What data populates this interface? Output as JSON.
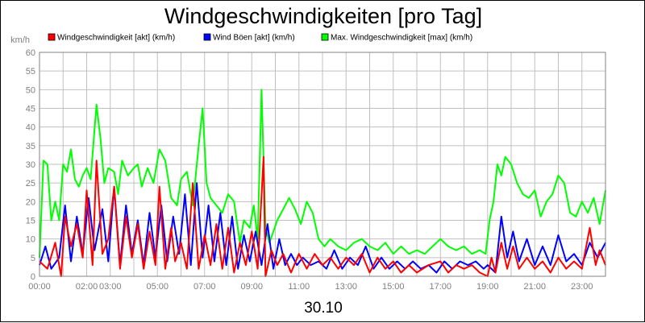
{
  "chart_data": {
    "type": "line",
    "title": "Windgeschwindigkeiten [pro Tag]",
    "date_label": "30.10",
    "y_unit": "km/h",
    "ylim": [
      0,
      60
    ],
    "y_ticks": [
      "0",
      "5",
      "10",
      "15",
      "20",
      "25",
      "30",
      "35",
      "40",
      "45",
      "50",
      "55",
      "60"
    ],
    "x_range": [
      "00:00",
      "24:00"
    ],
    "x_tick_labels": [
      "00:00",
      "02:00",
      "03:00",
      "05:00",
      "07:00",
      "09:00",
      "11:00",
      "13:00",
      "15:00",
      "17:00",
      "19:00",
      "21:00",
      "23:00"
    ],
    "grid": true,
    "legend_position": "top",
    "series": [
      {
        "name": "Windgeschwindigkeit [akt] (km/h)",
        "color": "#ff0000",
        "points": [
          [
            "00:00",
            4
          ],
          [
            "00:20",
            2
          ],
          [
            "00:40",
            9
          ],
          [
            "00:55",
            0
          ],
          [
            "01:05",
            16
          ],
          [
            "01:20",
            8
          ],
          [
            "01:35",
            14
          ],
          [
            "01:50",
            5
          ],
          [
            "02:00",
            23
          ],
          [
            "02:15",
            3
          ],
          [
            "02:25",
            31
          ],
          [
            "02:40",
            6
          ],
          [
            "02:55",
            10
          ],
          [
            "03:10",
            24
          ],
          [
            "03:25",
            2
          ],
          [
            "03:40",
            16
          ],
          [
            "03:55",
            5
          ],
          [
            "04:10",
            14
          ],
          [
            "04:25",
            2
          ],
          [
            "04:40",
            12
          ],
          [
            "04:55",
            3
          ],
          [
            "05:05",
            24
          ],
          [
            "05:20",
            2
          ],
          [
            "05:35",
            13
          ],
          [
            "05:45",
            4
          ],
          [
            "06:00",
            9
          ],
          [
            "06:15",
            2
          ],
          [
            "06:30",
            25
          ],
          [
            "06:45",
            2
          ],
          [
            "07:00",
            11
          ],
          [
            "07:15",
            3
          ],
          [
            "07:30",
            14
          ],
          [
            "07:45",
            2
          ],
          [
            "08:00",
            13
          ],
          [
            "08:15",
            1
          ],
          [
            "08:30",
            9
          ],
          [
            "08:45",
            3
          ],
          [
            "09:00",
            12
          ],
          [
            "09:15",
            2
          ],
          [
            "09:30",
            32
          ],
          [
            "09:35",
            0
          ],
          [
            "09:50",
            7
          ],
          [
            "10:05",
            3
          ],
          [
            "10:20",
            6
          ],
          [
            "10:40",
            1
          ],
          [
            "11:00",
            6
          ],
          [
            "11:20",
            2
          ],
          [
            "11:40",
            6
          ],
          [
            "12:00",
            3
          ],
          [
            "12:20",
            5
          ],
          [
            "12:40",
            2
          ],
          [
            "13:00",
            5
          ],
          [
            "13:20",
            3
          ],
          [
            "13:40",
            6
          ],
          [
            "14:00",
            1
          ],
          [
            "14:20",
            5
          ],
          [
            "14:40",
            2
          ],
          [
            "15:00",
            4
          ],
          [
            "15:20",
            1
          ],
          [
            "15:40",
            3
          ],
          [
            "16:00",
            1
          ],
          [
            "16:30",
            3
          ],
          [
            "17:00",
            4
          ],
          [
            "17:20",
            1
          ],
          [
            "17:40",
            3
          ],
          [
            "18:00",
            2
          ],
          [
            "18:20",
            3
          ],
          [
            "18:40",
            1
          ],
          [
            "19:00",
            0
          ],
          [
            "19:10",
            5
          ],
          [
            "19:20",
            1
          ],
          [
            "19:35",
            9
          ],
          [
            "19:50",
            2
          ],
          [
            "20:05",
            8
          ],
          [
            "20:20",
            2
          ],
          [
            "20:40",
            5
          ],
          [
            "21:00",
            2
          ],
          [
            "21:20",
            4
          ],
          [
            "21:40",
            1
          ],
          [
            "22:00",
            5
          ],
          [
            "22:20",
            2
          ],
          [
            "22:40",
            4
          ],
          [
            "23:00",
            2
          ],
          [
            "23:20",
            13
          ],
          [
            "23:35",
            3
          ],
          [
            "23:45",
            7
          ],
          [
            "24:00",
            3
          ]
        ]
      },
      {
        "name": "Wind Böen [akt] (km/h)",
        "color": "#0000ff",
        "points": [
          [
            "00:00",
            3
          ],
          [
            "00:15",
            8
          ],
          [
            "00:30",
            2
          ],
          [
            "00:50",
            5
          ],
          [
            "01:05",
            19
          ],
          [
            "01:20",
            4
          ],
          [
            "01:35",
            16
          ],
          [
            "01:50",
            6
          ],
          [
            "02:05",
            21
          ],
          [
            "02:20",
            7
          ],
          [
            "02:40",
            18
          ],
          [
            "02:55",
            4
          ],
          [
            "03:10",
            24
          ],
          [
            "03:25",
            3
          ],
          [
            "03:40",
            19
          ],
          [
            "03:55",
            6
          ],
          [
            "04:10",
            15
          ],
          [
            "04:25",
            3
          ],
          [
            "04:40",
            17
          ],
          [
            "04:55",
            5
          ],
          [
            "05:10",
            19
          ],
          [
            "05:25",
            4
          ],
          [
            "05:40",
            16
          ],
          [
            "05:55",
            6
          ],
          [
            "06:10",
            22
          ],
          [
            "06:25",
            3
          ],
          [
            "06:40",
            25
          ],
          [
            "06:55",
            5
          ],
          [
            "07:10",
            19
          ],
          [
            "07:25",
            4
          ],
          [
            "07:40",
            17
          ],
          [
            "07:55",
            3
          ],
          [
            "08:10",
            16
          ],
          [
            "08:25",
            2
          ],
          [
            "08:40",
            11
          ],
          [
            "08:55",
            4
          ],
          [
            "09:10",
            12
          ],
          [
            "09:25",
            3
          ],
          [
            "09:40",
            14
          ],
          [
            "09:55",
            2
          ],
          [
            "10:10",
            10
          ],
          [
            "10:25",
            3
          ],
          [
            "10:40",
            6
          ],
          [
            "10:55",
            3
          ],
          [
            "11:10",
            5
          ],
          [
            "11:30",
            3
          ],
          [
            "11:50",
            4
          ],
          [
            "12:10",
            2
          ],
          [
            "12:30",
            7
          ],
          [
            "12:50",
            2
          ],
          [
            "13:10",
            5
          ],
          [
            "13:30",
            3
          ],
          [
            "13:50",
            8
          ],
          [
            "14:10",
            2
          ],
          [
            "14:30",
            5
          ],
          [
            "14:50",
            2
          ],
          [
            "15:10",
            4
          ],
          [
            "15:30",
            2
          ],
          [
            "15:50",
            4
          ],
          [
            "16:10",
            2
          ],
          [
            "16:30",
            3
          ],
          [
            "16:50",
            1
          ],
          [
            "17:10",
            4
          ],
          [
            "17:30",
            2
          ],
          [
            "17:50",
            4
          ],
          [
            "18:10",
            3
          ],
          [
            "18:30",
            4
          ],
          [
            "18:50",
            2
          ],
          [
            "19:00",
            3
          ],
          [
            "19:20",
            1
          ],
          [
            "19:35",
            16
          ],
          [
            "19:50",
            5
          ],
          [
            "20:05",
            12
          ],
          [
            "20:20",
            4
          ],
          [
            "20:40",
            10
          ],
          [
            "21:00",
            3
          ],
          [
            "21:20",
            8
          ],
          [
            "21:40",
            3
          ],
          [
            "22:00",
            11
          ],
          [
            "22:20",
            4
          ],
          [
            "22:40",
            6
          ],
          [
            "23:00",
            3
          ],
          [
            "23:20",
            9
          ],
          [
            "23:40",
            5
          ],
          [
            "24:00",
            9
          ]
        ]
      },
      {
        "name": "Max. Windgeschwindigkeit [max] (km/h)",
        "color": "#00ff00",
        "points": [
          [
            "00:00",
            5
          ],
          [
            "00:10",
            31
          ],
          [
            "00:20",
            30
          ],
          [
            "00:30",
            15
          ],
          [
            "00:40",
            20
          ],
          [
            "00:50",
            15
          ],
          [
            "01:00",
            30
          ],
          [
            "01:10",
            28
          ],
          [
            "01:20",
            34
          ],
          [
            "01:30",
            26
          ],
          [
            "01:40",
            24
          ],
          [
            "01:50",
            27
          ],
          [
            "02:00",
            29
          ],
          [
            "02:10",
            26
          ],
          [
            "02:25",
            46
          ],
          [
            "02:35",
            37
          ],
          [
            "02:45",
            25
          ],
          [
            "02:55",
            29
          ],
          [
            "03:10",
            28
          ],
          [
            "03:20",
            22
          ],
          [
            "03:30",
            31
          ],
          [
            "03:45",
            27
          ],
          [
            "04:00",
            29
          ],
          [
            "04:10",
            30
          ],
          [
            "04:20",
            24
          ],
          [
            "04:35",
            29
          ],
          [
            "04:50",
            25
          ],
          [
            "05:05",
            34
          ],
          [
            "05:20",
            31
          ],
          [
            "05:35",
            21
          ],
          [
            "05:50",
            19
          ],
          [
            "06:00",
            26
          ],
          [
            "06:15",
            28
          ],
          [
            "06:30",
            19
          ],
          [
            "06:45",
            35
          ],
          [
            "06:55",
            45
          ],
          [
            "07:05",
            25
          ],
          [
            "07:15",
            21
          ],
          [
            "07:30",
            19
          ],
          [
            "07:45",
            17
          ],
          [
            "08:00",
            22
          ],
          [
            "08:15",
            20
          ],
          [
            "08:30",
            9
          ],
          [
            "08:40",
            15
          ],
          [
            "08:55",
            13
          ],
          [
            "09:05",
            19
          ],
          [
            "09:15",
            10
          ],
          [
            "09:25",
            50
          ],
          [
            "09:35",
            13
          ],
          [
            "09:45",
            9
          ],
          [
            "09:55",
            12
          ],
          [
            "10:05",
            15
          ],
          [
            "10:20",
            18
          ],
          [
            "10:35",
            21
          ],
          [
            "10:50",
            18
          ],
          [
            "11:05",
            14
          ],
          [
            "11:20",
            20
          ],
          [
            "11:35",
            17
          ],
          [
            "11:50",
            10
          ],
          [
            "12:05",
            8
          ],
          [
            "12:20",
            10
          ],
          [
            "12:40",
            8
          ],
          [
            "13:00",
            7
          ],
          [
            "13:20",
            9
          ],
          [
            "13:40",
            10
          ],
          [
            "14:00",
            8
          ],
          [
            "14:20",
            7
          ],
          [
            "14:40",
            9
          ],
          [
            "15:00",
            6
          ],
          [
            "15:20",
            8
          ],
          [
            "15:40",
            6
          ],
          [
            "16:00",
            7
          ],
          [
            "16:20",
            6
          ],
          [
            "16:40",
            8
          ],
          [
            "17:00",
            10
          ],
          [
            "17:20",
            8
          ],
          [
            "17:40",
            7
          ],
          [
            "18:00",
            8
          ],
          [
            "18:20",
            6
          ],
          [
            "18:40",
            7
          ],
          [
            "18:55",
            6
          ],
          [
            "19:05",
            15
          ],
          [
            "19:15",
            20
          ],
          [
            "19:25",
            30
          ],
          [
            "19:35",
            27
          ],
          [
            "19:45",
            32
          ],
          [
            "20:00",
            30
          ],
          [
            "20:15",
            25
          ],
          [
            "20:30",
            22
          ],
          [
            "20:45",
            21
          ],
          [
            "21:00",
            23
          ],
          [
            "21:15",
            16
          ],
          [
            "21:30",
            20
          ],
          [
            "21:45",
            22
          ],
          [
            "22:00",
            27
          ],
          [
            "22:15",
            25
          ],
          [
            "22:30",
            17
          ],
          [
            "22:45",
            16
          ],
          [
            "23:00",
            20
          ],
          [
            "23:15",
            17
          ],
          [
            "23:30",
            21
          ],
          [
            "23:45",
            14
          ],
          [
            "24:00",
            23
          ]
        ]
      }
    ]
  }
}
